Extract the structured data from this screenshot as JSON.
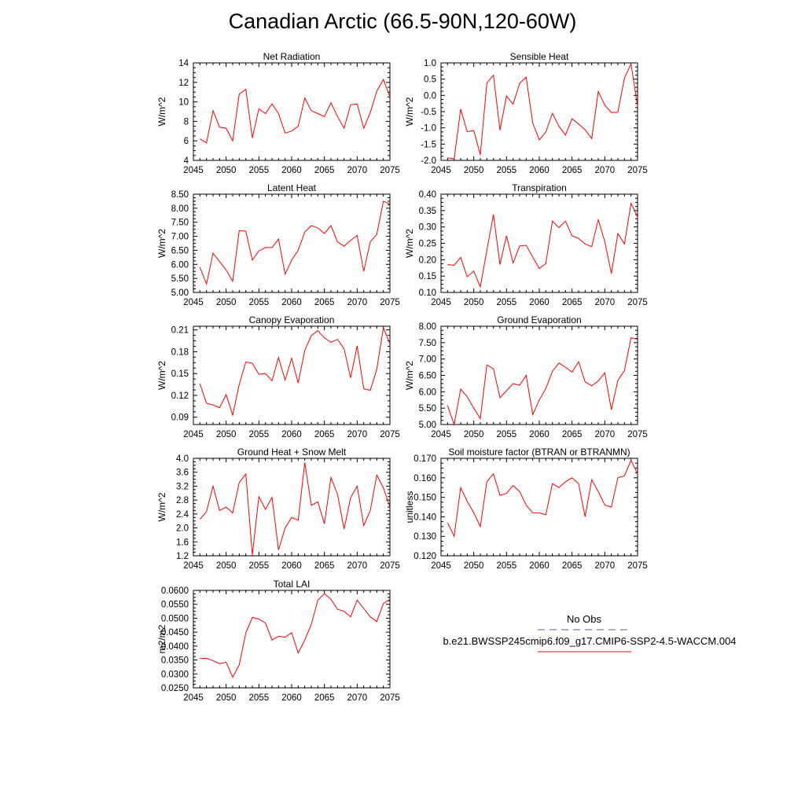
{
  "page_title": "Canadian Arctic (66.5-90N,120-60W)",
  "legend": {
    "obs_label": "No Obs",
    "obs_color": "#5a5aa0",
    "case_label": "b.e21.BWSSP245cmip6.f09_g17.CMIP6-SSP2-4.5-WACCM.004",
    "case_color": "#ff0000"
  },
  "chart_data": [
    {
      "type": "line",
      "title": "Net Radiation",
      "ylabel": "W/m^2",
      "xlim": [
        2045,
        2075
      ],
      "ylim": [
        4,
        14
      ],
      "xticks": [
        "2045",
        "2050",
        "2055",
        "2060",
        "2065",
        "2070",
        "2075"
      ],
      "yticks": [
        "4",
        "6",
        "8",
        "10",
        "12",
        "14"
      ],
      "x": [
        2046,
        2047,
        2048,
        2049,
        2050,
        2051,
        2052,
        2053,
        2054,
        2055,
        2056,
        2057,
        2058,
        2059,
        2060,
        2061,
        2062,
        2063,
        2064,
        2065,
        2066,
        2067,
        2068,
        2069,
        2070,
        2071,
        2072,
        2073,
        2074,
        2075
      ],
      "values": [
        6.2,
        5.8,
        9.1,
        7.4,
        7.3,
        6.0,
        10.8,
        11.3,
        6.3,
        9.3,
        8.8,
        9.8,
        8.8,
        6.8,
        7.0,
        7.5,
        10.4,
        9.1,
        8.8,
        8.5,
        9.9,
        8.5,
        7.3,
        9.7,
        9.8,
        7.3,
        8.9,
        11.1,
        12.3,
        10.5
      ],
      "series_color": "#ff0000"
    },
    {
      "type": "line",
      "title": "Sensible Heat",
      "ylabel": "W/m^2",
      "xlim": [
        2045,
        2075
      ],
      "ylim": [
        -2.0,
        1.0
      ],
      "xticks": [
        "2045",
        "2050",
        "2055",
        "2060",
        "2065",
        "2070",
        "2075"
      ],
      "yticks": [
        "-2.0",
        "-1.5",
        "-1.0",
        "-0.5",
        "0.0",
        "0.5",
        "1.0"
      ],
      "x": [
        2046,
        2047,
        2048,
        2049,
        2050,
        2051,
        2052,
        2053,
        2054,
        2055,
        2056,
        2057,
        2058,
        2059,
        2060,
        2061,
        2062,
        2063,
        2064,
        2065,
        2066,
        2067,
        2068,
        2069,
        2070,
        2071,
        2072,
        2073,
        2074,
        2075
      ],
      "values": [
        -1.92,
        -1.96,
        -0.42,
        -1.12,
        -1.08,
        -1.83,
        0.38,
        0.62,
        -1.07,
        -0.02,
        -0.27,
        0.37,
        0.56,
        -0.85,
        -1.37,
        -1.13,
        -0.55,
        -0.95,
        -1.22,
        -0.72,
        -0.88,
        -1.06,
        -1.33,
        0.12,
        -0.3,
        -0.53,
        -0.52,
        0.53,
        0.97,
        -0.35
      ],
      "series_color": "#ff0000"
    },
    {
      "type": "line",
      "title": "Latent Heat",
      "ylabel": "W/m^2",
      "xlim": [
        2045,
        2075
      ],
      "ylim": [
        5.0,
        8.5
      ],
      "xticks": [
        "2045",
        "2050",
        "2055",
        "2060",
        "2065",
        "2070",
        "2075"
      ],
      "yticks": [
        "5.00",
        "5.50",
        "6.00",
        "6.50",
        "7.00",
        "7.50",
        "8.00",
        "8.50"
      ],
      "x": [
        2046,
        2047,
        2048,
        2049,
        2050,
        2051,
        2052,
        2053,
        2054,
        2055,
        2056,
        2057,
        2058,
        2059,
        2060,
        2061,
        2062,
        2063,
        2064,
        2065,
        2066,
        2067,
        2068,
        2069,
        2070,
        2071,
        2072,
        2073,
        2074,
        2075
      ],
      "values": [
        5.9,
        5.3,
        6.4,
        6.1,
        5.8,
        5.4,
        7.2,
        7.18,
        6.15,
        6.48,
        6.6,
        6.6,
        6.9,
        5.65,
        6.15,
        6.5,
        7.15,
        7.38,
        7.3,
        7.1,
        7.38,
        6.8,
        6.65,
        6.85,
        7.03,
        5.75,
        6.8,
        7.07,
        8.25,
        8.15
      ],
      "series_color": "#ff0000"
    },
    {
      "type": "line",
      "title": "Transpiration",
      "ylabel": "W/m^2",
      "xlim": [
        2045,
        2075
      ],
      "ylim": [
        0.1,
        0.4
      ],
      "xticks": [
        "2045",
        "2050",
        "2055",
        "2060",
        "2065",
        "2070",
        "2075"
      ],
      "yticks": [
        "0.10",
        "0.15",
        "0.20",
        "0.25",
        "0.30",
        "0.35",
        "0.40"
      ],
      "x": [
        2046,
        2047,
        2048,
        2049,
        2050,
        2051,
        2052,
        2053,
        2054,
        2055,
        2056,
        2057,
        2058,
        2059,
        2060,
        2061,
        2062,
        2063,
        2064,
        2065,
        2066,
        2067,
        2068,
        2069,
        2070,
        2071,
        2072,
        2073,
        2074,
        2075
      ],
      "values": [
        0.185,
        0.183,
        0.207,
        0.148,
        0.165,
        0.117,
        0.228,
        0.338,
        0.185,
        0.273,
        0.19,
        0.242,
        0.244,
        0.208,
        0.173,
        0.188,
        0.318,
        0.298,
        0.318,
        0.273,
        0.265,
        0.248,
        0.24,
        0.322,
        0.255,
        0.158,
        0.28,
        0.248,
        0.372,
        0.33
      ],
      "series_color": "#ff0000"
    },
    {
      "type": "line",
      "title": "Canopy Evaporation",
      "ylabel": "W/m^2",
      "xlim": [
        2045,
        2075
      ],
      "ylim": [
        0.08,
        0.215
      ],
      "xticks": [
        "2045",
        "2050",
        "2055",
        "2060",
        "2065",
        "2070",
        "2075"
      ],
      "yticks": [
        "0.09",
        "0.12",
        "0.15",
        "0.18",
        "0.21"
      ],
      "ytick_values": [
        0.09,
        0.12,
        0.15,
        0.18,
        0.21
      ],
      "x": [
        2046,
        2047,
        2048,
        2049,
        2050,
        2051,
        2052,
        2053,
        2054,
        2055,
        2056,
        2057,
        2058,
        2059,
        2060,
        2061,
        2062,
        2063,
        2064,
        2065,
        2066,
        2067,
        2068,
        2069,
        2070,
        2071,
        2072,
        2073,
        2074,
        2075
      ],
      "values": [
        0.136,
        0.109,
        0.107,
        0.103,
        0.121,
        0.093,
        0.135,
        0.166,
        0.164,
        0.149,
        0.15,
        0.14,
        0.172,
        0.141,
        0.171,
        0.137,
        0.182,
        0.202,
        0.209,
        0.199,
        0.193,
        0.197,
        0.184,
        0.144,
        0.188,
        0.129,
        0.127,
        0.156,
        0.213,
        0.191
      ],
      "series_color": "#ff0000"
    },
    {
      "type": "line",
      "title": "Ground Evaporation",
      "ylabel": "W/m^2",
      "xlim": [
        2045,
        2075
      ],
      "ylim": [
        5.0,
        8.0
      ],
      "xticks": [
        "2045",
        "2050",
        "2055",
        "2060",
        "2065",
        "2070",
        "2075"
      ],
      "yticks": [
        "5.00",
        "5.50",
        "6.00",
        "6.50",
        "7.00",
        "7.50",
        "8.00"
      ],
      "x": [
        2046,
        2047,
        2048,
        2049,
        2050,
        2051,
        2052,
        2053,
        2054,
        2055,
        2056,
        2057,
        2058,
        2059,
        2060,
        2061,
        2062,
        2063,
        2064,
        2065,
        2066,
        2067,
        2068,
        2069,
        2070,
        2071,
        2072,
        2073,
        2074,
        2075
      ],
      "values": [
        5.58,
        5.0,
        6.08,
        5.85,
        5.5,
        5.18,
        6.82,
        6.7,
        5.82,
        6.03,
        6.25,
        6.2,
        6.5,
        5.3,
        5.75,
        6.1,
        6.62,
        6.88,
        6.75,
        6.6,
        6.92,
        6.3,
        6.18,
        6.33,
        6.58,
        5.45,
        6.35,
        6.65,
        7.65,
        7.6
      ],
      "series_color": "#ff0000"
    },
    {
      "type": "line",
      "title": "Ground Heat + Snow Melt",
      "ylabel": "W/m^2",
      "xlim": [
        2045,
        2075
      ],
      "ylim": [
        1.2,
        4.0
      ],
      "xticks": [
        "2045",
        "2050",
        "2055",
        "2060",
        "2065",
        "2070",
        "2075"
      ],
      "yticks": [
        "1.2",
        "1.6",
        "2.0",
        "2.4",
        "2.8",
        "3.2",
        "3.6",
        "4.0"
      ],
      "x": [
        2046,
        2047,
        2048,
        2049,
        2050,
        2051,
        2052,
        2053,
        2054,
        2055,
        2056,
        2057,
        2058,
        2059,
        2060,
        2061,
        2062,
        2063,
        2064,
        2065,
        2066,
        2067,
        2068,
        2069,
        2070,
        2071,
        2072,
        2073,
        2074,
        2075
      ],
      "values": [
        2.25,
        2.47,
        3.2,
        2.5,
        2.6,
        2.43,
        3.3,
        3.55,
        1.22,
        2.9,
        2.53,
        2.88,
        1.37,
        2.0,
        2.3,
        2.22,
        3.88,
        2.65,
        2.75,
        2.12,
        3.45,
        2.97,
        1.97,
        2.87,
        3.2,
        2.07,
        2.5,
        3.52,
        3.15,
        2.6
      ],
      "series_color": "#ff0000"
    },
    {
      "type": "line",
      "title": "Soil moisture factor (BTRAN or BTRANMN)",
      "ylabel": "unitless",
      "xlim": [
        2045,
        2075
      ],
      "ylim": [
        0.12,
        0.17
      ],
      "xticks": [
        "2045",
        "2050",
        "2055",
        "2060",
        "2065",
        "2070",
        "2075"
      ],
      "yticks": [
        "0.120",
        "0.130",
        "0.140",
        "0.150",
        "0.160",
        "0.170"
      ],
      "x": [
        2046,
        2047,
        2048,
        2049,
        2050,
        2051,
        2052,
        2053,
        2054,
        2055,
        2056,
        2057,
        2058,
        2059,
        2060,
        2061,
        2062,
        2063,
        2064,
        2065,
        2066,
        2067,
        2068,
        2069,
        2070,
        2071,
        2072,
        2073,
        2074,
        2075
      ],
      "values": [
        0.137,
        0.13,
        0.155,
        0.148,
        0.142,
        0.135,
        0.158,
        0.162,
        0.151,
        0.152,
        0.156,
        0.153,
        0.146,
        0.142,
        0.142,
        0.141,
        0.157,
        0.155,
        0.158,
        0.16,
        0.157,
        0.14,
        0.159,
        0.153,
        0.146,
        0.145,
        0.16,
        0.161,
        0.169,
        0.162
      ],
      "series_color": "#ff0000"
    },
    {
      "type": "line",
      "title": "Total LAI",
      "ylabel": "m2/m2",
      "xlim": [
        2045,
        2075
      ],
      "ylim": [
        0.025,
        0.06
      ],
      "xticks": [
        "2045",
        "2050",
        "2055",
        "2060",
        "2065",
        "2070",
        "2075"
      ],
      "yticks": [
        "0.0250",
        "0.0300",
        "0.0350",
        "0.0400",
        "0.0450",
        "0.0500",
        "0.0550",
        "0.0600"
      ],
      "x": [
        2046,
        2047,
        2048,
        2049,
        2050,
        2051,
        2052,
        2053,
        2054,
        2055,
        2056,
        2057,
        2058,
        2059,
        2060,
        2061,
        2062,
        2063,
        2064,
        2065,
        2066,
        2067,
        2068,
        2069,
        2070,
        2071,
        2072,
        2073,
        2074,
        2075
      ],
      "values": [
        0.0355,
        0.0356,
        0.0348,
        0.0337,
        0.0342,
        0.0288,
        0.0332,
        0.0447,
        0.0503,
        0.0497,
        0.0483,
        0.0422,
        0.0435,
        0.0432,
        0.0448,
        0.0375,
        0.0422,
        0.0478,
        0.0565,
        0.0588,
        0.0568,
        0.0532,
        0.0525,
        0.0505,
        0.0565,
        0.0535,
        0.0505,
        0.0488,
        0.0553,
        0.0568
      ],
      "series_color": "#ff0000"
    }
  ]
}
